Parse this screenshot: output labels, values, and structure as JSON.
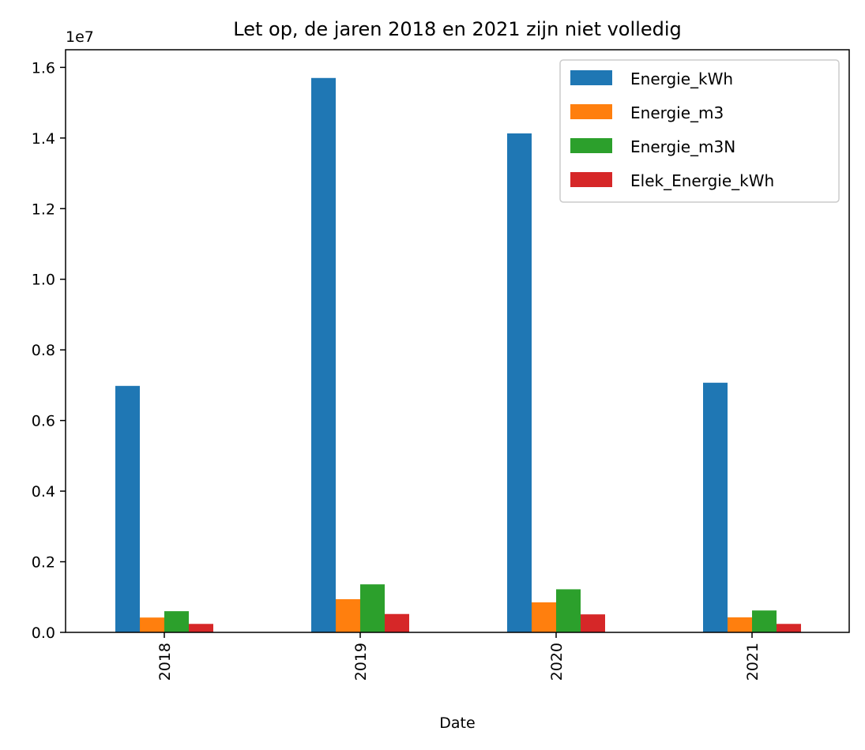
{
  "chart_data": {
    "type": "bar",
    "title": "Let op, de jaren 2018 en 2021 zijn niet volledig",
    "xlabel": "Date",
    "ylabel": "",
    "y_offset_label": "1e7",
    "categories": [
      "2018",
      "2019",
      "2020",
      "2021"
    ],
    "ylim": [
      0,
      16500000
    ],
    "yticks": [
      0,
      2000000,
      4000000,
      6000000,
      8000000,
      10000000,
      12000000,
      14000000,
      16000000
    ],
    "ytick_labels": [
      "0.0",
      "0.2",
      "0.4",
      "0.6",
      "0.8",
      "1.0",
      "1.2",
      "1.4",
      "1.6"
    ],
    "legend_position": "top-right",
    "grid": false,
    "series": [
      {
        "name": "Energie_kWh",
        "color": "#1f77b4",
        "values": [
          6980000,
          15700000,
          14130000,
          7070000
        ]
      },
      {
        "name": "Energie_m3",
        "color": "#ff7f0e",
        "values": [
          420000,
          940000,
          850000,
          425000
        ]
      },
      {
        "name": "Energie_m3N",
        "color": "#2ca02c",
        "values": [
          600000,
          1360000,
          1220000,
          620000
        ]
      },
      {
        "name": "Elek_Energie_kWh",
        "color": "#d62728",
        "values": [
          240000,
          520000,
          510000,
          240000
        ]
      }
    ]
  }
}
